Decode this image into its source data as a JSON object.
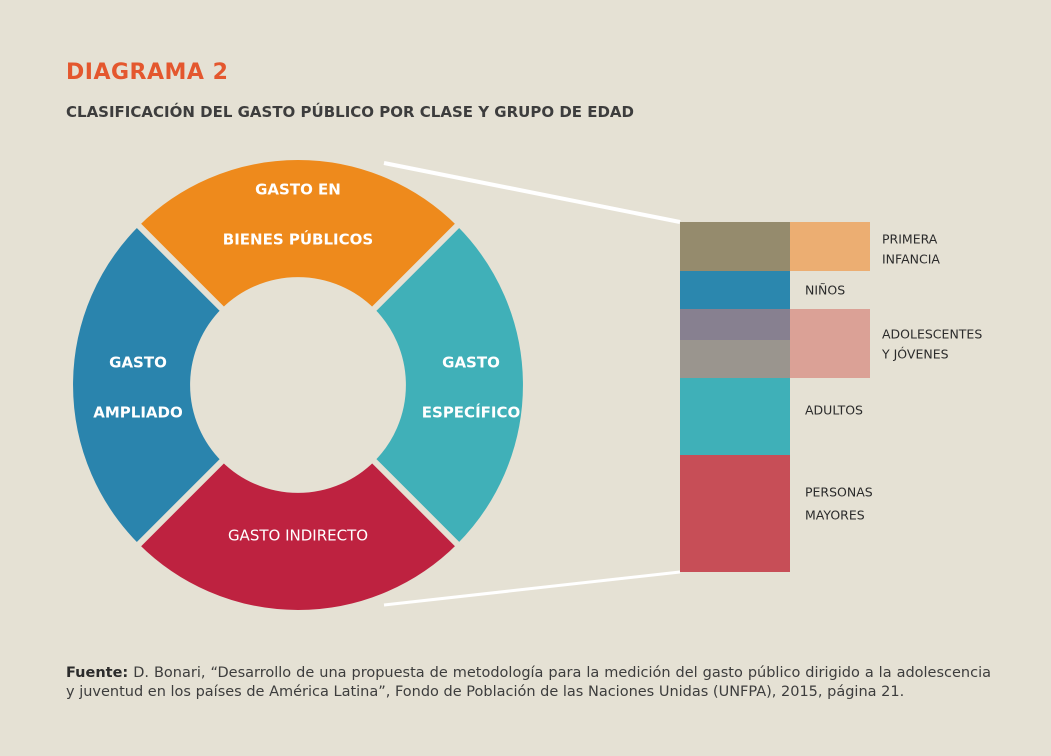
{
  "title": "DIAGRAMA 2",
  "subtitle": "CLASIFICACIÓN DEL GASTO PÚBLICO POR CLASE Y GRUPO DE EDAD",
  "segments": [
    {
      "lines": [
        "GASTO EN",
        "BIENES PÚBLICOS"
      ]
    },
    {
      "lines": [
        "GASTO",
        "ESPECÍFICO"
      ]
    },
    {
      "lines": [
        "GASTO INDIRECTO"
      ]
    },
    {
      "lines": [
        "GASTO",
        "AMPLIADO"
      ]
    }
  ],
  "groups": [
    {
      "lines": [
        "PRIMERA",
        "INFANCIA"
      ]
    },
    {
      "lines": [
        "NIÑOS"
      ]
    },
    {
      "lines": [
        "ADOLESCENTES",
        "Y JÓVENES"
      ]
    },
    {
      "lines": [
        "ADULTOS"
      ]
    },
    {
      "lines": [
        "PERSONAS",
        "MAYORES"
      ]
    }
  ],
  "source": {
    "label": "Fuente:",
    "text": "D. Bonari, “Desarrollo de una propuesta de metodología para la medición del gasto público dirigido a la adolescencia y juventud en los países de América Latina”, Fondo de Población de las Naciones Unidas (UNFPA), 2015, página 21."
  }
}
